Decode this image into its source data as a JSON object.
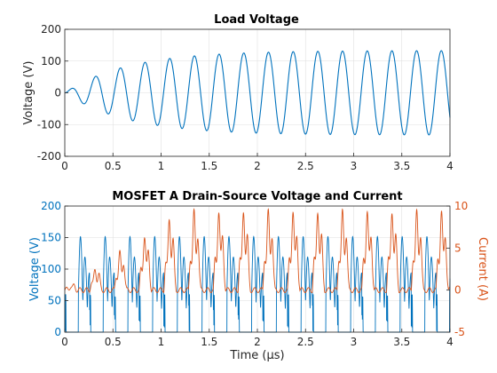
{
  "chart_data": [
    {
      "type": "line",
      "title": "Load Voltage",
      "xlabel": "",
      "ylabel": "Voltage (V)",
      "xlim": [
        0,
        4
      ],
      "ylim": [
        -200,
        200
      ],
      "xticks": [
        "0",
        "0.5",
        "1",
        "1.5",
        "2",
        "2.5",
        "3",
        "3.5",
        "4"
      ],
      "yticks": [
        "-200",
        "-100",
        "0",
        "100",
        "200"
      ],
      "grid": true,
      "colors": {
        "series": "#0072BD"
      },
      "series": [
        {
          "frequency_mhz": 3.9,
          "steady_amplitude": 133,
          "time_constant_us": 0.65,
          "start_value": 0,
          "end_value": 80
        }
      ]
    },
    {
      "type": "line",
      "title": "MOSFET A Drain-Source Voltage and Current",
      "xlabel": "Time (μs)",
      "ylabel": "Voltage (V)",
      "ylabel_right": "Current (A)",
      "xlim": [
        0,
        4
      ],
      "ylim": [
        0,
        200
      ],
      "ylim_right": [
        -5,
        10
      ],
      "xticks": [
        "0",
        "0.5",
        "1",
        "1.5",
        "2",
        "2.5",
        "3",
        "3.5",
        "4"
      ],
      "yticks": [
        "0",
        "50",
        "100",
        "150",
        "200"
      ],
      "yticks_right": [
        "-5",
        "0",
        "5",
        "10"
      ],
      "grid": true,
      "colors": {
        "voltage": "#0072BD",
        "current": "#D95319"
      },
      "series": [
        {
          "axis": "left",
          "switching_period_us": 0.257,
          "on_level_v": 0,
          "peak_v": 170
        },
        {
          "axis": "right",
          "switching_period_us": 0.257,
          "off_level_a": 0,
          "peak_a": 9.5
        }
      ]
    }
  ]
}
